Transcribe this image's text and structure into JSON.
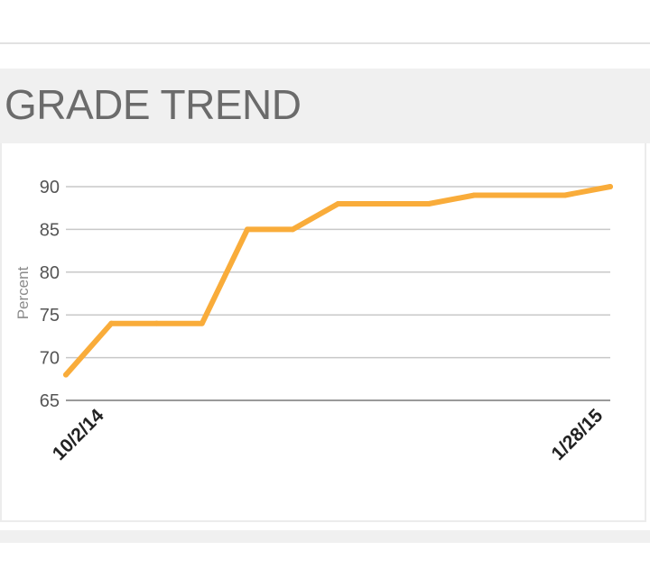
{
  "panel": {
    "title": "GRADE TREND"
  },
  "chart_data": {
    "type": "line",
    "title": "GRADE TREND",
    "xlabel": "",
    "ylabel": "Percent",
    "ylim": [
      65,
      90
    ],
    "yticks": [
      90,
      85,
      80,
      75,
      70,
      65
    ],
    "x_tick_labels": [
      {
        "index": 0,
        "label": "10/2/14"
      },
      {
        "index": 11,
        "label": "1/28/15"
      }
    ],
    "grid": true,
    "legend": "none",
    "series": [
      {
        "color": "#f9ac3a",
        "values": [
          68,
          74,
          74,
          74,
          85,
          85,
          88,
          88,
          88,
          89,
          89,
          89,
          90
        ]
      }
    ]
  }
}
